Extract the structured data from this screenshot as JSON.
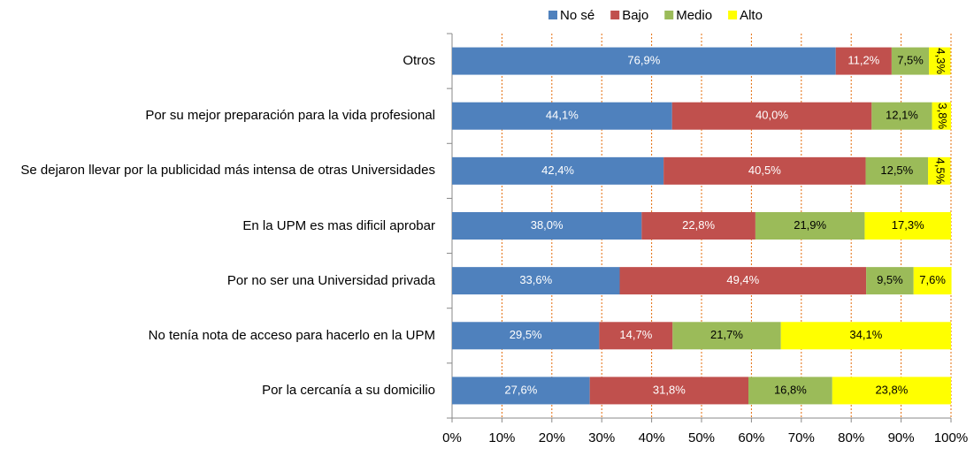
{
  "chart_data": {
    "type": "stacked-bar-horizontal",
    "categories": [
      "Otros",
      "Por su mejor preparación para la vida profesional",
      "Se dejaron llevar por la publicidad más intensa de otras Universidades",
      "En la UPM es mas dificil aprobar",
      "Por no ser una Universidad privada",
      "No tenía nota de acceso para hacerlo en la UPM",
      "Por la cercanía a su domicilio"
    ],
    "series": [
      {
        "name": "No sé",
        "color": "#4f81bd",
        "values": [
          76.9,
          44.1,
          42.4,
          38.0,
          33.6,
          29.5,
          27.6
        ],
        "value_labels": [
          "76,9%",
          "44,1%",
          "42,4%",
          "38,0%",
          "33,6%",
          "29,5%",
          "27,6%"
        ]
      },
      {
        "name": "Bajo",
        "color": "#c0504d",
        "values": [
          11.2,
          40.0,
          40.5,
          22.8,
          49.4,
          14.7,
          31.8
        ],
        "value_labels": [
          "11,2%",
          "40,0%",
          "40,5%",
          "22,8%",
          "49,4%",
          "14,7%",
          "31,8%"
        ]
      },
      {
        "name": "Medio",
        "color": "#9bbb59",
        "values": [
          7.5,
          12.1,
          12.5,
          21.9,
          9.5,
          21.7,
          16.8
        ],
        "value_labels": [
          "7,5%",
          "12,1%",
          "12,5%",
          "21,9%",
          "9,5%",
          "21,7%",
          "16,8%"
        ]
      },
      {
        "name": "Alto",
        "color": "#ffff00",
        "values": [
          4.3,
          3.8,
          4.5,
          17.3,
          7.6,
          34.1,
          23.8
        ],
        "value_labels": [
          "4,3%",
          "3,8%",
          "4,5%",
          "17,3%",
          "7,6%",
          "34,1%",
          "23,8%"
        ]
      }
    ],
    "xlim": [
      0,
      100
    ],
    "xticks": [
      {
        "value": 0,
        "label": "0%"
      },
      {
        "value": 10,
        "label": "10%"
      },
      {
        "value": 20,
        "label": "20%"
      },
      {
        "value": 30,
        "label": "30%"
      },
      {
        "value": 40,
        "label": "40%"
      },
      {
        "value": 50,
        "label": "50%"
      },
      {
        "value": 60,
        "label": "60%"
      },
      {
        "value": 70,
        "label": "70%"
      },
      {
        "value": 80,
        "label": "80%"
      },
      {
        "value": 90,
        "label": "90%"
      },
      {
        "value": 100,
        "label": "100%"
      }
    ],
    "grid": true,
    "legend": "top"
  }
}
